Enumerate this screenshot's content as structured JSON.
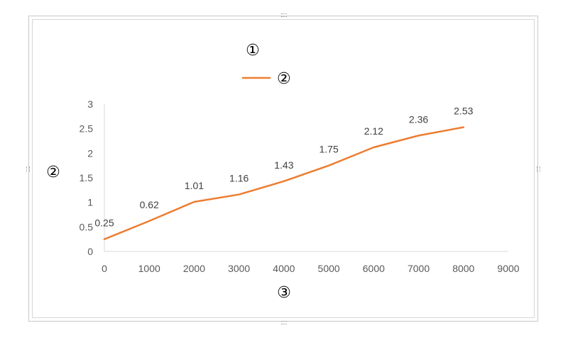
{
  "chart_data": {
    "type": "line",
    "title": "①",
    "xlabel": "③",
    "ylabel": "②",
    "x": [
      0,
      1000,
      2000,
      3000,
      4000,
      5000,
      6000,
      7000,
      8000
    ],
    "series": [
      {
        "name": "②",
        "values": [
          0.25,
          0.62,
          1.01,
          1.16,
          1.43,
          1.75,
          2.12,
          2.36,
          2.53
        ],
        "color": "#ED7D31"
      }
    ],
    "data_labels": [
      "0.25",
      "0.62",
      "1.01",
      "1.16",
      "1.43",
      "1.75",
      "2.12",
      "2.36",
      "2.53"
    ],
    "xlim": [
      0,
      9000
    ],
    "ylim": [
      0,
      3
    ],
    "x_ticks": [
      "0",
      "1000",
      "2000",
      "3000",
      "4000",
      "5000",
      "6000",
      "7000",
      "8000",
      "9000"
    ],
    "y_ticks": [
      "0",
      "0.5",
      "1",
      "1.5",
      "2",
      "2.5",
      "3"
    ],
    "grid": false,
    "legend_position": "top"
  }
}
